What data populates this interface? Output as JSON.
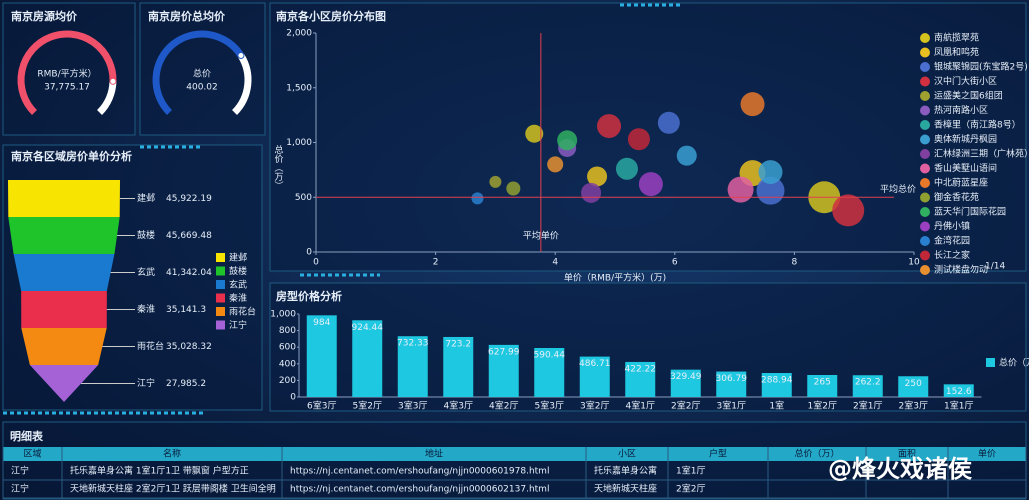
{
  "chart_data": [
    {
      "type": "gauge",
      "title": "南京房源均价",
      "label": "RMB/平方米）",
      "values": [
        37775.17
      ],
      "value_labels": [
        "37,775.17"
      ],
      "range": [
        0,
        45000
      ],
      "color": "#f0506a"
    },
    {
      "type": "gauge",
      "title": "南京房价总均价",
      "label": "总价",
      "values": [
        400.02
      ],
      "range": [
        0,
        560
      ],
      "color": "#1f58c8"
    },
    {
      "type": "funnel",
      "title": "南京各区域房价单价分析",
      "categories": [
        "建邺",
        "鼓楼",
        "玄武",
        "秦淮",
        "雨花台",
        "江宁"
      ],
      "values": [
        45922.19,
        45669.48,
        41342.04,
        35141.3,
        35028.32,
        27985.2
      ],
      "value_labels": [
        "45,922.19",
        "45,669.48",
        "41,342.04",
        "35,141.3",
        "35,028.32",
        "27,985.2"
      ],
      "colors": [
        "#f7e400",
        "#1fc42a",
        "#1a7ad0",
        "#ea2f4c",
        "#f58a12",
        "#a462d6"
      ]
    },
    {
      "type": "scatter",
      "title": "南京各小区房价分布图",
      "xlabel": "单价（RMB/平方米）(万)",
      "ylabel": "总价（万）",
      "xlim": [
        0,
        10
      ],
      "xticks": [
        0,
        2,
        4,
        6,
        8,
        10
      ],
      "ylim": [
        0,
        2000
      ],
      "yticks": [
        0,
        500,
        {
          "value": 1000,
          "label": "1,000"
        },
        {
          "value": 1500,
          "label": "1,500"
        },
        {
          "value": 2000,
          "label": "2,000"
        }
      ],
      "reference_lines": [
        {
          "label": "平均总价",
          "axis": "y",
          "value": 500
        },
        {
          "label": "平均单价",
          "axis": "x",
          "value": 3.76
        }
      ],
      "legend_page": "1/14",
      "series": [
        {
          "name": "南航揽翠苑",
          "color": "#d4c21e",
          "values": [
            [
              3.65,
              1080,
              9
            ],
            [
              8.5,
              500,
              16
            ]
          ]
        },
        {
          "name": "凤凰和鸣苑",
          "color": "#e8c020",
          "values": [
            [
              4.7,
              690,
              10
            ],
            [
              7.3,
              720,
              13
            ]
          ]
        },
        {
          "name": "银城聚锦园(东宝路2号)",
          "color": "#4a6fd0",
          "values": [
            [
              5.9,
              1180,
              11
            ],
            [
              7.6,
              560,
              14
            ]
          ]
        },
        {
          "name": "汉中门大街小区",
          "color": "#d03040",
          "values": [
            [
              4.9,
              1150,
              12
            ],
            [
              8.9,
              380,
              16
            ]
          ]
        },
        {
          "name": "运盛美之国6组团",
          "color": "#a0a030",
          "values": [
            [
              3.0,
              640,
              6
            ]
          ]
        },
        {
          "name": "热河南路小区",
          "color": "#8a5cc0",
          "values": [
            [
              4.2,
              950,
              9
            ]
          ]
        },
        {
          "name": "香樟里（南江路8号）",
          "color": "#2aa8a0",
          "values": [
            [
              5.2,
              760,
              11
            ]
          ]
        },
        {
          "name": "奥体新城丹枫园",
          "color": "#3a9fd0",
          "values": [
            [
              6.2,
              880,
              10
            ],
            [
              7.6,
              730,
              12
            ]
          ]
        },
        {
          "name": "汇林绿洲三期（广林苑）",
          "color": "#8040a0",
          "values": [
            [
              4.6,
              540,
              10
            ]
          ]
        },
        {
          "name": "香山美墅山语间",
          "color": "#e060a0",
          "values": [
            [
              7.1,
              570,
              13
            ]
          ]
        },
        {
          "name": "中北蔚蓝星座",
          "color": "#e8782a",
          "values": [
            [
              7.3,
              1350,
              12
            ]
          ]
        },
        {
          "name": "御金香花苑",
          "color": "#90a030",
          "values": [
            [
              3.3,
              580,
              7
            ]
          ]
        },
        {
          "name": "蓝天华门国际花园",
          "color": "#30b060",
          "values": [
            [
              4.2,
              1020,
              10
            ]
          ]
        },
        {
          "name": "丹佛小镇",
          "color": "#9a40c0",
          "values": [
            [
              5.6,
              620,
              12
            ]
          ]
        },
        {
          "name": "金湾花园",
          "color": "#2a80d0",
          "values": [
            [
              2.7,
              490,
              6
            ]
          ]
        },
        {
          "name": "长江之家",
          "color": "#c02838",
          "values": [
            [
              5.4,
              1030,
              11
            ]
          ]
        },
        {
          "name": "测试楼盘勿动",
          "color": "#e89030",
          "values": [
            [
              4.0,
              800,
              8
            ]
          ]
        }
      ]
    },
    {
      "type": "bar",
      "title": "房型价格分析",
      "categories": [
        "6室3厅",
        "5室2厅",
        "3室3厅",
        "4室3厅",
        "4室2厅",
        "5室3厅",
        "3室2厅",
        "4室1厅",
        "2室2厅",
        "3室1厅",
        "1室",
        "1室2厅",
        "2室1厅",
        "2室3厅",
        "1室1厅"
      ],
      "series": [
        {
          "name": "总价（万）",
          "color": "#1ec8e0",
          "values": [
            984,
            924.44,
            732.33,
            723.2,
            627.99,
            590.44,
            486.71,
            422.22,
            329.49,
            306.79,
            288.94,
            265,
            262.2,
            250,
            152.6
          ]
        }
      ],
      "ylim": [
        0,
        1000
      ],
      "yticks": [
        0,
        200,
        400,
        600,
        800,
        {
          "value": 1000,
          "label": "1,000"
        }
      ]
    }
  ],
  "table": {
    "title": "明细表",
    "columns": [
      "区域",
      "名称",
      "地址",
      "小区",
      "户型",
      "总价（万）",
      "面积",
      "单价"
    ],
    "rows": [
      [
        "江宁",
        "托乐嘉单身公寓 1室1厅1卫 带飘窗 户型方正",
        "https://nj.centanet.com/ershoufang/njjn0000601978.html",
        "托乐嘉单身公寓",
        "1室1厅"
      ],
      [
        "江宁",
        "天地新城天柱座 2室2厅1卫 跃层带阁楼 卫生间全明",
        "https://nj.centanet.com/ershoufang/njjn0000602137.html",
        "天地新城天柱座",
        "2室2厅"
      ]
    ]
  },
  "watermark": "@烽火戏诸侯"
}
